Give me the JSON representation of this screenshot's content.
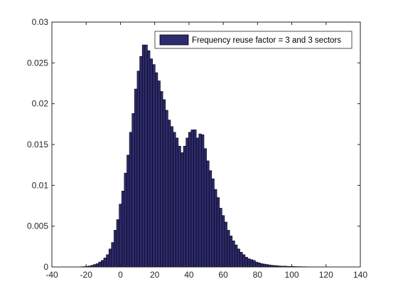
{
  "chart_data": {
    "type": "bar",
    "title": "",
    "xlabel": "",
    "ylabel": "",
    "xlim": [
      -40,
      140
    ],
    "ylim": [
      0,
      0.03
    ],
    "xticks": [
      -40,
      -20,
      0,
      20,
      40,
      60,
      80,
      100,
      120,
      140
    ],
    "xtick_labels": [
      "-40",
      "-20",
      "0",
      "20",
      "40",
      "60",
      "80",
      "100",
      "120",
      "140"
    ],
    "yticks": [
      0,
      0.005,
      0.01,
      0.015,
      0.02,
      0.025,
      0.03
    ],
    "ytick_labels": [
      "0",
      "0.005",
      "0.01",
      "0.015",
      "0.02",
      "0.025",
      "0.03"
    ],
    "grid": false,
    "legend_position": "top-right",
    "bin_width": 1.5,
    "series": [
      {
        "name": "Frequency reuse factor = 3 and 3 sectors",
        "color": "#2e2a6e",
        "edge_color": "#000000",
        "x": [
          -22.5,
          -21,
          -19.5,
          -18,
          -16.5,
          -15,
          -13.5,
          -12,
          -10.5,
          -9,
          -7.5,
          -6,
          -4.5,
          -3,
          -1.5,
          0,
          1.5,
          3,
          4.5,
          6,
          7.5,
          9,
          10.5,
          12,
          13.5,
          15,
          16.5,
          18,
          19.5,
          21,
          22.5,
          24,
          25.5,
          27,
          28.5,
          30,
          31.5,
          33,
          34.5,
          36,
          37.5,
          39,
          40.5,
          42,
          43.5,
          45,
          46.5,
          48,
          49.5,
          51,
          52.5,
          54,
          55.5,
          57,
          58.5,
          60,
          61.5,
          63,
          64.5,
          66,
          67.5,
          69,
          70.5,
          72,
          73.5,
          75,
          76.5,
          78,
          79.5,
          81,
          82.5,
          84,
          85.5,
          87,
          88.5,
          90,
          91.5,
          93,
          94.5,
          96,
          97.5,
          99,
          100.5,
          102,
          103.5,
          105,
          106.5,
          108,
          109.5,
          111,
          112.5,
          114,
          115.5,
          117,
          118.5,
          120,
          121.5,
          123,
          124.5,
          126,
          127.5,
          129,
          130.5,
          132
        ],
        "values": [
          3e-05,
          5e-05,
          8e-05,
          0.00012,
          0.0002,
          0.0003,
          0.0004,
          0.0006,
          0.0008,
          0.0011,
          0.0015,
          0.0022,
          0.003,
          0.0045,
          0.0058,
          0.0077,
          0.0093,
          0.0115,
          0.0137,
          0.0165,
          0.0188,
          0.0218,
          0.024,
          0.0258,
          0.0272,
          0.0272,
          0.0265,
          0.0255,
          0.0248,
          0.0238,
          0.0228,
          0.0215,
          0.0205,
          0.0192,
          0.018,
          0.0172,
          0.0165,
          0.0158,
          0.0148,
          0.014,
          0.0148,
          0.0158,
          0.0165,
          0.0168,
          0.0168,
          0.0158,
          0.0163,
          0.0162,
          0.0145,
          0.013,
          0.0118,
          0.0108,
          0.0095,
          0.0085,
          0.0072,
          0.0063,
          0.0055,
          0.0045,
          0.0038,
          0.0032,
          0.0027,
          0.0022,
          0.0018,
          0.0015,
          0.0012,
          0.001,
          0.0009,
          0.0008,
          0.0006,
          0.0005,
          0.0004,
          0.00035,
          0.0003,
          0.00025,
          0.0002,
          0.00018,
          0.00015,
          0.00012,
          0.0001,
          0.0001,
          8e-05,
          7e-05,
          6e-05,
          5e-05,
          4e-05,
          4e-05,
          3e-05,
          3e-05,
          2e-05,
          2e-05,
          2e-05,
          2e-05,
          1e-05,
          1e-05,
          1e-05,
          1e-05,
          1e-05,
          1e-05,
          1e-05,
          1e-05,
          1e-05,
          1e-05,
          1e-05,
          1e-05
        ]
      }
    ]
  }
}
